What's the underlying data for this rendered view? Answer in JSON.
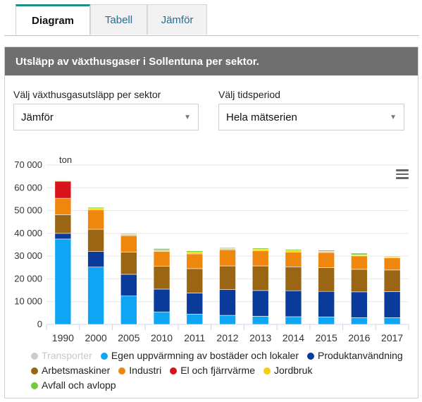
{
  "tabs": [
    {
      "label": "Diagram",
      "active": true
    },
    {
      "label": "Tabell",
      "active": false
    },
    {
      "label": "Jämför",
      "active": false
    }
  ],
  "panel": {
    "title": "Utsläpp av växthusgaser i Sollentuna per sektor."
  },
  "controls": {
    "sector_label": "Välj växthusgasutsläpp per sektor",
    "sector_value": "Jämför",
    "period_label": "Välj tidsperiod",
    "period_value": "Hela mätserien"
  },
  "icons": {
    "menu": "hamburger-menu-icon",
    "dropdown": "chevron-down-icon"
  },
  "chart_data": {
    "type": "bar",
    "stacked": true,
    "unit_label": "ton",
    "categories": [
      "1990",
      "2000",
      "2005",
      "2010",
      "2011",
      "2012",
      "2013",
      "2014",
      "2015",
      "2016",
      "2017"
    ],
    "ylim": [
      0,
      70000
    ],
    "yticks": [
      "0",
      "10 000",
      "20 000",
      "30 000",
      "40 000",
      "50 000",
      "60 000",
      "70 000"
    ],
    "grid": true,
    "legend_position": "bottom",
    "series": [
      {
        "name": "Transporter",
        "color": "#cccccc",
        "hidden": true,
        "values": [
          null,
          null,
          null,
          null,
          null,
          null,
          null,
          null,
          null,
          null,
          null
        ]
      },
      {
        "name": "Egen uppvärmning av bostäder och lokaler",
        "color": "#0ea5f5",
        "values": [
          37500,
          25200,
          12500,
          5500,
          4500,
          4000,
          3600,
          3400,
          3300,
          3000,
          3000
        ]
      },
      {
        "name": "Produktanvändning",
        "color": "#0b3b9a",
        "values": [
          2500,
          6800,
          9500,
          10000,
          9300,
          11300,
          11300,
          11400,
          11200,
          11300,
          11400
        ]
      },
      {
        "name": "Arbetsmaskiner",
        "color": "#9b6613",
        "values": [
          8200,
          9800,
          9800,
          10000,
          10700,
          10400,
          10800,
          10500,
          10400,
          9900,
          9500
        ]
      },
      {
        "name": "Industri",
        "color": "#ef860d",
        "values": [
          7200,
          8500,
          7200,
          6500,
          6500,
          7100,
          6700,
          6500,
          6700,
          5900,
          5300
        ]
      },
      {
        "name": "El och fjärrvärme",
        "color": "#d7141b",
        "values": [
          7500,
          0,
          0,
          0,
          0,
          0,
          0,
          0,
          0,
          0,
          0
        ]
      },
      {
        "name": "Jordbruk",
        "color": "#f5cd12",
        "values": [
          300,
          600,
          500,
          700,
          700,
          500,
          600,
          600,
          500,
          500,
          500
        ]
      },
      {
        "name": "Avfall och avlopp",
        "color": "#73c93a",
        "values": [
          200,
          500,
          400,
          600,
          600,
          400,
          500,
          500,
          500,
          700,
          300
        ]
      }
    ]
  }
}
